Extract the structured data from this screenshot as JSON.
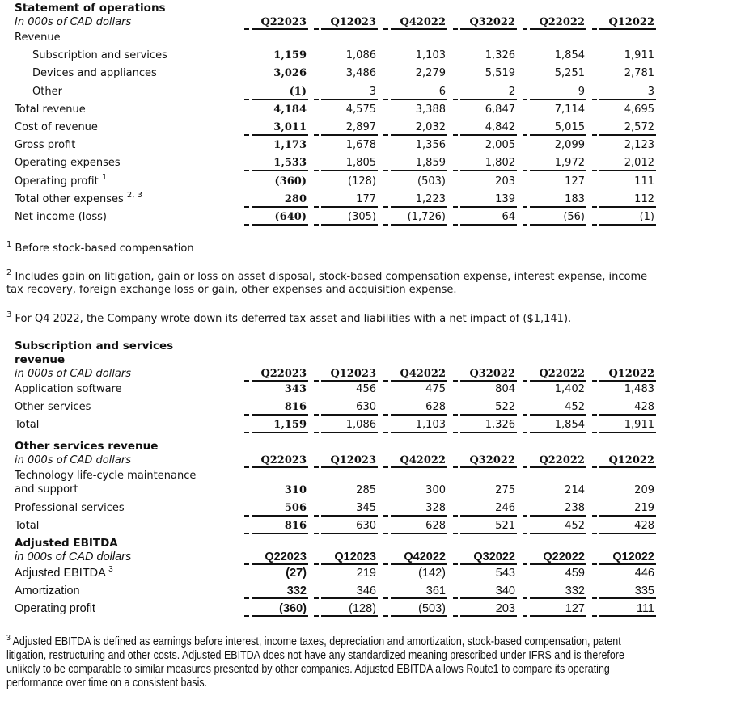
{
  "quarters": [
    "Q22023",
    "Q12023",
    "Q42022",
    "Q32022",
    "Q22022",
    "Q12022"
  ],
  "sections": [
    {
      "title": [
        "Statement of operations"
      ],
      "unit": "In 000s of CAD dollars",
      "rows": [
        {
          "label": "Revenue",
          "values": []
        },
        {
          "label": "Subscription and services",
          "indent": true,
          "values": [
            "1,159",
            "1,086",
            "1,103",
            "1,326",
            "1,854",
            "1,911"
          ]
        },
        {
          "label": "Devices and appliances",
          "indent": true,
          "values": [
            "3,026",
            "3,486",
            "2,279",
            "5,519",
            "5,251",
            "2,781"
          ]
        },
        {
          "label": "Other",
          "indent": true,
          "values": [
            "(1)",
            "3",
            "6",
            "2",
            "9",
            "3"
          ],
          "ul": true
        },
        {
          "label": "Total revenue",
          "values": [
            "4,184",
            "4,575",
            "3,388",
            "6,847",
            "7,114",
            "4,695"
          ]
        },
        {
          "label": "Cost of revenue",
          "values": [
            "3,011",
            "2,897",
            "2,032",
            "4,842",
            "5,015",
            "2,572"
          ],
          "ul": true
        },
        {
          "label": "Gross profit",
          "values": [
            "1,173",
            "1,678",
            "1,356",
            "2,005",
            "2,099",
            "2,123"
          ]
        },
        {
          "label": "Operating expenses",
          "values": [
            "1,533",
            "1,805",
            "1,859",
            "1,802",
            "1,972",
            "2,012"
          ],
          "ul": true
        },
        {
          "label": "Operating profit",
          "sup": "1",
          "values": [
            "(360)",
            "(128)",
            "(503)",
            "203",
            "127",
            "111"
          ]
        },
        {
          "label": "Total other expenses",
          "sup": "2, 3",
          "values": [
            "280",
            "177",
            "1,223",
            "139",
            "183",
            "112"
          ],
          "ul": true
        },
        {
          "label": "Net income (loss)",
          "values": [
            "(640)",
            "(305)",
            "(1,726)",
            "64",
            "(56)",
            "(1)"
          ],
          "ul": true
        }
      ]
    },
    {
      "title": [
        "Subscription and services",
        "revenue"
      ],
      "unit": "in 000s of CAD dollars",
      "rows": [
        {
          "label": "Application software",
          "values": [
            "343",
            "456",
            "475",
            "804",
            "1,402",
            "1,483"
          ]
        },
        {
          "label": "Other services",
          "values": [
            "816",
            "630",
            "628",
            "522",
            "452",
            "428"
          ],
          "ul": true
        },
        {
          "label": "Total",
          "values": [
            "1,159",
            "1,086",
            "1,103",
            "1,326",
            "1,854",
            "1,911"
          ],
          "ul": true
        }
      ]
    },
    {
      "title": [
        "Other services revenue"
      ],
      "unit": "in 000s of CAD dollars",
      "rows": [
        {
          "label": "Technology life-cycle maintenance\nand support",
          "two": true,
          "values": [
            "310",
            "285",
            "300",
            "275",
            "214",
            "209"
          ]
        },
        {
          "label": "Professional services",
          "values": [
            "506",
            "345",
            "328",
            "246",
            "238",
            "219"
          ],
          "ul": true
        },
        {
          "label": "Total",
          "values": [
            "816",
            "630",
            "628",
            "521",
            "452",
            "428"
          ],
          "ul": true
        }
      ]
    },
    {
      "title": [
        "Adjusted EBITDA"
      ],
      "unit": "in 000s of CAD dollars",
      "rows": [
        {
          "label": "Adjusted EBITDA",
          "sup": "3",
          "values": [
            "(27)",
            "219",
            "(142)",
            "543",
            "459",
            "446"
          ]
        },
        {
          "label": "Amortization",
          "values": [
            "332",
            "346",
            "361",
            "340",
            "332",
            "335"
          ],
          "ul": true
        },
        {
          "label": "Operating profit",
          "values": [
            "(360)",
            "(128)",
            "(503)",
            "203",
            "127",
            "111"
          ],
          "ul": true
        }
      ]
    }
  ],
  "footnotes": {
    "f1": {
      "mark": "1",
      "text": "Before stock-based compensation"
    },
    "f2": {
      "mark": "2",
      "text": "Includes gain on litigation, gain or loss on asset disposal, stock-based compensation expense, interest expense, income tax recovery, foreign exchange loss or gain, other expenses and acquisition expense."
    },
    "f3": {
      "mark": "3",
      "text": "For Q4 2022, the Company wrote down its deferred tax asset and liabilities with a net impact of ($1,141)."
    },
    "f4": {
      "mark": "3",
      "text": "Adjusted EBITDA is defined as earnings before interest, income taxes, depreciation and amortization, stock-based compensation, patent litigation, restructuring and other costs. Adjusted EBITDA does not have any standardized meaning prescribed under IFRS and is therefore unlikely to be comparable to similar measures presented by other companies. Adjusted EBITDA allows Route1 to compare its operating performance over time on a consistent basis."
    }
  }
}
